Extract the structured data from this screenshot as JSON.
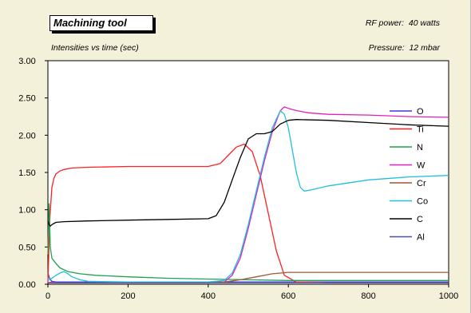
{
  "header": {
    "title": "Machining tool",
    "subtitle": "Intensities vs time (sec)",
    "rf_power": "RF power:  40 watts",
    "pressure": "Pressure:  12 mbar"
  },
  "chart_data": {
    "type": "line",
    "xlim": [
      0,
      1000
    ],
    "ylim": [
      0,
      3.0
    ],
    "xticks": [
      "0",
      "200",
      "400",
      "600",
      "800",
      "1000"
    ],
    "yticks": [
      "0.00",
      "0.50",
      "1.00",
      "1.50",
      "2.00",
      "2.50",
      "3.00"
    ],
    "xtick_values": [
      0,
      200,
      400,
      600,
      800,
      1000
    ],
    "ytick_values": [
      0,
      0.5,
      1.0,
      1.5,
      2.0,
      2.5,
      3.0
    ],
    "grid": false,
    "legend_position": "right",
    "series": [
      {
        "name": "O",
        "color": "#3a3ad8",
        "x": [
          0,
          5,
          10,
          20,
          40,
          60,
          100,
          200,
          400,
          600,
          800,
          1000
        ],
        "y": [
          0.15,
          0.07,
          0.04,
          0.03,
          0.03,
          0.03,
          0.03,
          0.03,
          0.03,
          0.03,
          0.03,
          0.03
        ]
      },
      {
        "name": "Ti",
        "color": "#ff2020",
        "x": [
          0,
          5,
          10,
          15,
          20,
          30,
          40,
          60,
          100,
          200,
          300,
          400,
          430,
          450,
          470,
          490,
          510,
          530,
          550,
          570,
          590,
          620,
          700,
          1000
        ],
        "y": [
          0.02,
          0.9,
          1.3,
          1.42,
          1.48,
          1.52,
          1.54,
          1.56,
          1.57,
          1.58,
          1.58,
          1.58,
          1.62,
          1.73,
          1.84,
          1.88,
          1.78,
          1.45,
          0.95,
          0.45,
          0.12,
          0.03,
          0.02,
          0.02
        ]
      },
      {
        "name": "N",
        "color": "#20a050",
        "x": [
          0,
          3,
          6,
          10,
          20,
          30,
          50,
          80,
          120,
          200,
          300,
          400,
          500,
          600,
          1000
        ],
        "y": [
          0.4,
          1.08,
          0.5,
          0.35,
          0.28,
          0.22,
          0.17,
          0.14,
          0.12,
          0.1,
          0.08,
          0.07,
          0.06,
          0.05,
          0.05
        ]
      },
      {
        "name": "W",
        "color": "#e020c0",
        "x": [
          0,
          10,
          20,
          50,
          100,
          200,
          300,
          400,
          440,
          460,
          480,
          500,
          520,
          540,
          560,
          580,
          590,
          600,
          620,
          650,
          700,
          800,
          900,
          1000
        ],
        "y": [
          0.02,
          0.03,
          0.02,
          0.02,
          0.02,
          0.02,
          0.02,
          0.02,
          0.03,
          0.12,
          0.35,
          0.75,
          1.2,
          1.65,
          2.05,
          2.33,
          2.38,
          2.36,
          2.33,
          2.3,
          2.28,
          2.27,
          2.25,
          2.24
        ]
      },
      {
        "name": "Cr",
        "color": "#a05a30",
        "x": [
          0,
          10,
          100,
          200,
          300,
          400,
          440,
          480,
          520,
          560,
          600,
          700,
          800,
          900,
          1000
        ],
        "y": [
          0.02,
          0.02,
          0.02,
          0.02,
          0.02,
          0.02,
          0.03,
          0.06,
          0.1,
          0.14,
          0.16,
          0.16,
          0.16,
          0.16,
          0.16
        ]
      },
      {
        "name": "Co",
        "color": "#20c0e0",
        "x": [
          0,
          10,
          20,
          30,
          40,
          50,
          60,
          80,
          100,
          200,
          400,
          440,
          460,
          480,
          500,
          520,
          540,
          560,
          580,
          590,
          600,
          610,
          620,
          630,
          640,
          660,
          700,
          800,
          900,
          1000
        ],
        "y": [
          0.05,
          0.08,
          0.12,
          0.15,
          0.17,
          0.14,
          0.1,
          0.06,
          0.04,
          0.03,
          0.03,
          0.05,
          0.15,
          0.4,
          0.8,
          1.25,
          1.7,
          2.1,
          2.33,
          2.28,
          2.1,
          1.8,
          1.5,
          1.3,
          1.25,
          1.27,
          1.32,
          1.4,
          1.44,
          1.46
        ]
      },
      {
        "name": "C",
        "color": "#000000",
        "x": [
          0,
          3,
          6,
          10,
          20,
          40,
          100,
          200,
          300,
          400,
          420,
          440,
          460,
          480,
          500,
          520,
          540,
          560,
          580,
          600,
          620,
          700,
          800,
          900,
          1000
        ],
        "y": [
          0.85,
          0.8,
          0.78,
          0.8,
          0.83,
          0.84,
          0.85,
          0.86,
          0.87,
          0.88,
          0.92,
          1.1,
          1.4,
          1.7,
          1.95,
          2.02,
          2.02,
          2.05,
          2.15,
          2.2,
          2.21,
          2.2,
          2.17,
          2.14,
          2.12
        ]
      },
      {
        "name": "Al",
        "color": "#5050a0",
        "x": [
          0,
          10,
          100,
          200,
          400,
          600,
          800,
          1000
        ],
        "y": [
          0.02,
          0.02,
          0.02,
          0.02,
          0.02,
          0.02,
          0.02,
          0.02
        ]
      }
    ]
  }
}
